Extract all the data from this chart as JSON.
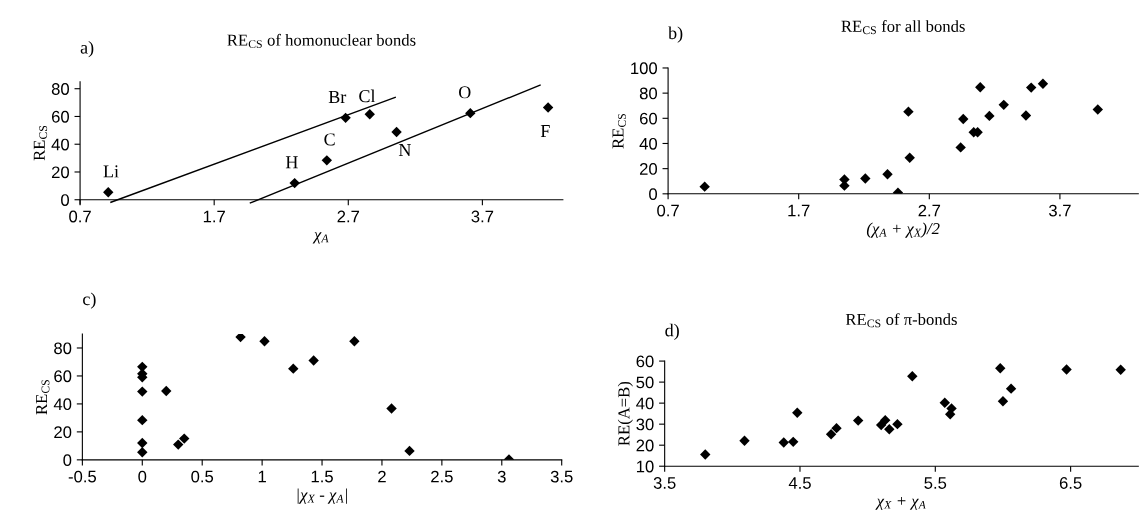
{
  "chart_data": [
    {
      "type": "scatter",
      "title": "RE$_{CS}$ of homonuclear bonds",
      "xlabel": "χ$_{A}$",
      "ylabel": "RE$_{CS}$",
      "xlim": [
        0.7,
        4.3
      ],
      "xticks": [
        0.7,
        1.7,
        2.7,
        3.7
      ],
      "ylim": [
        -3,
        85
      ],
      "yticks": [
        0,
        20,
        40,
        60,
        80
      ],
      "marker": "diamond",
      "grid": false,
      "legend": false,
      "series": [
        {
          "color": "#000000",
          "x": [
            0.91,
            2.3,
            2.54,
            2.68,
            2.86,
            3.06,
            3.61,
            4.19
          ],
          "values": [
            5.4,
            12,
            28.4,
            59,
            61.6,
            48.8,
            62.4,
            66.5
          ]
        },
        {
          "type": "line",
          "marker": "none",
          "color": "#000000",
          "x": [
            0.93,
            3.05
          ],
          "values": [
            -1.8,
            73.7
          ]
        },
        {
          "type": "line",
          "marker": "none",
          "color": "#000000",
          "x": [
            1.97,
            4.13
          ],
          "values": [
            -2.3,
            82.6
          ]
        }
      ],
      "annotations": [
        "a)",
        {
          "text": "Li",
          "x": 0.91,
          "y": 5.4
        },
        {
          "text": "H",
          "x": 2.3,
          "y": 12
        },
        {
          "text": "C",
          "x": 2.54,
          "y": 28.4
        },
        {
          "text": "Br",
          "x": 2.68,
          "y": 59
        },
        {
          "text": "Cl",
          "x": 2.86,
          "y": 61.6
        },
        {
          "text": "N",
          "x": 3.06,
          "y": 48.8
        },
        {
          "text": "O",
          "x": 3.61,
          "y": 62.4
        },
        {
          "text": "F",
          "x": 4.19,
          "y": 66.5
        }
      ]
    },
    {
      "type": "scatter",
      "title": "RE$_{CS}$ for all bonds",
      "xlabel": "(χ$_{A}$ + χ$_{X}$)/2",
      "ylabel": "RE$_{CS}$",
      "xlim": [
        0.7,
        4.3
      ],
      "xticks": [
        0.7,
        1.7,
        2.7,
        3.7
      ],
      "ylim": [
        0,
        100
      ],
      "yticks": [
        0,
        20,
        40,
        60,
        80,
        100
      ],
      "marker": "diamond",
      "grid": false,
      "legend": false,
      "series": [
        {
          "color": "#000000",
          "x": [
            0.98,
            2.05,
            2.05,
            2.21,
            2.38,
            2.46,
            2.54,
            2.55,
            2.94,
            2.96,
            3.04,
            3.07,
            3.09,
            3.16,
            3.27,
            3.44,
            3.48,
            3.57,
            3.99
          ],
          "values": [
            5.7,
            11.4,
            6.5,
            12.2,
            15.6,
            0.9,
            65.3,
            28.7,
            36.9,
            59.4,
            48.9,
            48.9,
            84.7,
            61.9,
            70.7,
            62.2,
            84.4,
            87.5,
            67
          ]
        }
      ],
      "annotations": [
        "b)"
      ]
    },
    {
      "type": "scatter",
      "xlabel": "|χ$_{X}$ - χ$_{A}$|",
      "ylabel": "RE$_{CS}$",
      "xlim": [
        -0.5,
        3.5
      ],
      "xticks": [
        -0.5,
        0,
        0.5,
        1,
        1.5,
        2,
        2.5,
        3,
        3.5
      ],
      "ylim": [
        0,
        90
      ],
      "yticks": [
        0,
        20,
        40,
        60,
        80
      ],
      "marker": "diamond",
      "grid": false,
      "legend": false,
      "series": [
        {
          "color": "#000000",
          "x": [
            0,
            0,
            0,
            0,
            0,
            0,
            0,
            0.2,
            0.3,
            0.35,
            0.82,
            1.02,
            1.26,
            1.43,
            1.77,
            2.08,
            2.23,
            3.06
          ],
          "values": [
            66.5,
            61.6,
            59,
            48.8,
            28.4,
            12,
            5.4,
            49.2,
            10.9,
            15.2,
            87.8,
            84.8,
            65.2,
            71,
            84.8,
            36.7,
            6.4,
            0.3
          ]
        }
      ],
      "annotations": [
        "c)"
      ]
    },
    {
      "type": "scatter",
      "title": "RE$_{CS}$ of π-bonds",
      "xlabel": "χ$_{X}$ + χ$_{A}$",
      "ylabel": "RE(A=B)",
      "xlim": [
        3.5,
        7.0
      ],
      "xticks": [
        3.5,
        4.5,
        5.5,
        6.5
      ],
      "ylim": [
        10,
        60
      ],
      "yticks": [
        10,
        20,
        30,
        40,
        50,
        60
      ],
      "marker": "diamond",
      "grid": false,
      "legend": false,
      "series": [
        {
          "color": "#000000",
          "x": [
            3.8,
            4.09,
            4.38,
            4.45,
            4.48,
            4.73,
            4.77,
            4.93,
            5.1,
            5.13,
            5.16,
            5.22,
            5.33,
            5.57,
            5.61,
            5.62,
            5.98,
            6.0,
            6.06,
            6.47,
            6.87
          ],
          "values": [
            15.6,
            22.1,
            21.3,
            21.6,
            35.4,
            25.2,
            28.1,
            31.7,
            29.6,
            31.9,
            27.6,
            30,
            52.8,
            40.2,
            34.7,
            37.5,
            56.6,
            40.9,
            46.9,
            56,
            55.9
          ]
        }
      ],
      "annotations": [
        "d)"
      ]
    }
  ]
}
